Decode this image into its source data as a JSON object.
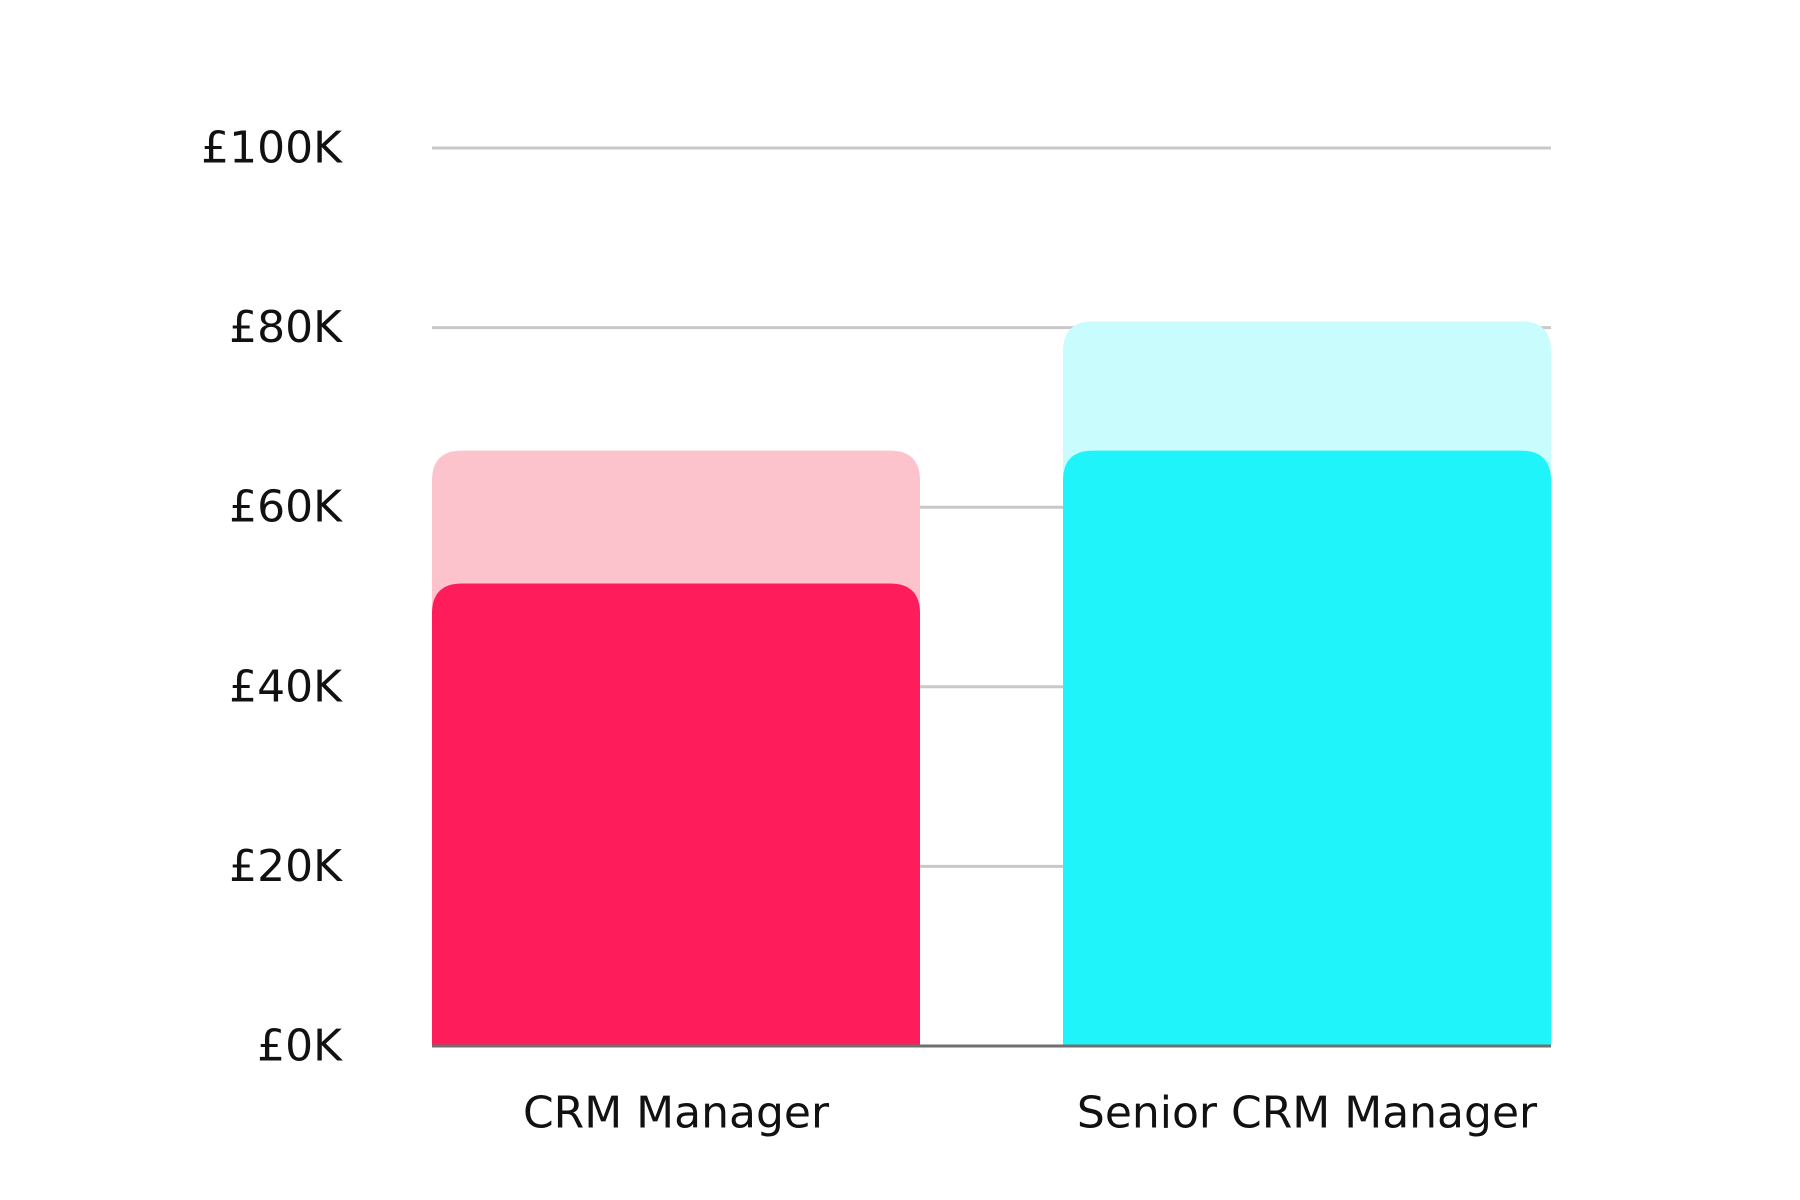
{
  "chart_data": {
    "type": "bar",
    "categories": [
      "CRM Manager",
      "Senior CRM Manager"
    ],
    "y_ticks": [
      "£0K",
      "£20K",
      "£40K",
      "£60K",
      "£80K",
      "£100K"
    ],
    "tick_values": [
      0,
      20000,
      40000,
      60000,
      80000,
      100000
    ],
    "ylim": [
      0,
      100000
    ],
    "grid": true,
    "bars": [
      {
        "category": "CRM Manager",
        "lower": 51500,
        "upper": 66300,
        "color_lower": "#ff1c5b",
        "color_upper": "#fdc3cd"
      },
      {
        "category": "Senior CRM Manager",
        "lower": 66300,
        "upper": 80700,
        "color_lower": "#20f4fb",
        "color_upper": "#c9fcfd"
      }
    ],
    "colors": {
      "gridline": "#c8c8c8",
      "baseline": "#6f6f6f",
      "text": "#111111"
    }
  }
}
